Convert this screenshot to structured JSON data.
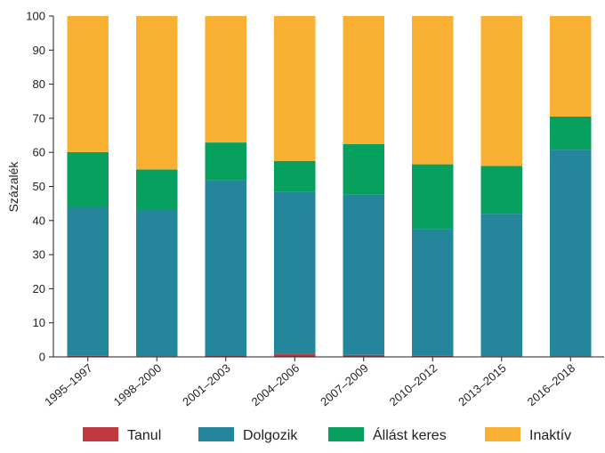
{
  "chart_data": {
    "type": "bar",
    "stacked": true,
    "title": "",
    "xlabel": "",
    "ylabel": "Százalék",
    "ylim": [
      0,
      100
    ],
    "yticks": [
      0,
      10,
      20,
      30,
      40,
      50,
      60,
      70,
      80,
      90,
      100
    ],
    "grid": false,
    "legend_position": "bottom",
    "categories": [
      "1995–1997",
      "1998–2000",
      "2001–2003",
      "2004–2006",
      "2007–2009",
      "2010–2012",
      "2013–2015",
      "2016–2018"
    ],
    "series": [
      {
        "name": "Tanul",
        "color": "#c0393f",
        "values": [
          0.3,
          0.2,
          0.4,
          0.8,
          0.6,
          0.3,
          0.2,
          0.2
        ]
      },
      {
        "name": "Dolgozik",
        "color": "#23869a",
        "values": [
          43.7,
          43.0,
          51.4,
          47.6,
          47.0,
          37.2,
          41.8,
          60.6
        ]
      },
      {
        "name": "Állást keres",
        "color": "#07a05e",
        "values": [
          16.1,
          11.8,
          11.1,
          9.1,
          14.8,
          19.0,
          14.0,
          9.7
        ]
      },
      {
        "name": "Inaktív",
        "color": "#f8b133",
        "values": [
          39.9,
          45.0,
          37.1,
          42.5,
          37.6,
          43.5,
          44.0,
          29.5
        ]
      }
    ]
  }
}
